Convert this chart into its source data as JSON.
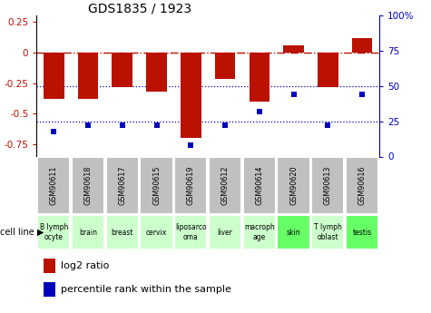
{
  "title": "GDS1835 / 1923",
  "gsm_labels": [
    "GSM90611",
    "GSM90618",
    "GSM90617",
    "GSM90615",
    "GSM90619",
    "GSM90612",
    "GSM90614",
    "GSM90620",
    "GSM90613",
    "GSM90616"
  ],
  "cell_lines": [
    "B lymph\nocyte",
    "brain",
    "breast",
    "cervix",
    "liposarco\noma",
    "liver",
    "macroph\nage",
    "skin",
    "T lymph\noblast",
    "testis"
  ],
  "cell_line_colors": [
    "#ccffcc",
    "#ccffcc",
    "#ccffcc",
    "#ccffcc",
    "#ccffcc",
    "#ccffcc",
    "#ccffcc",
    "#66ff66",
    "#ccffcc",
    "#66ff66"
  ],
  "log2_ratios": [
    -0.38,
    -0.38,
    -0.28,
    -0.32,
    -0.7,
    -0.22,
    -0.4,
    0.06,
    -0.28,
    0.12
  ],
  "percentile_ranks": [
    18,
    22,
    22,
    22,
    8,
    22,
    32,
    44,
    22,
    44
  ],
  "ylim_left": [
    -0.85,
    0.3
  ],
  "ylim_right": [
    0,
    100
  ],
  "bar_color": "#bb1100",
  "dot_color": "#0000bb",
  "dash_color": "#bb1100",
  "dotline_color": "#0000bb",
  "gsm_box_color": "#c0c0c0",
  "legend_red": "#bb1100",
  "legend_blue": "#0000bb"
}
